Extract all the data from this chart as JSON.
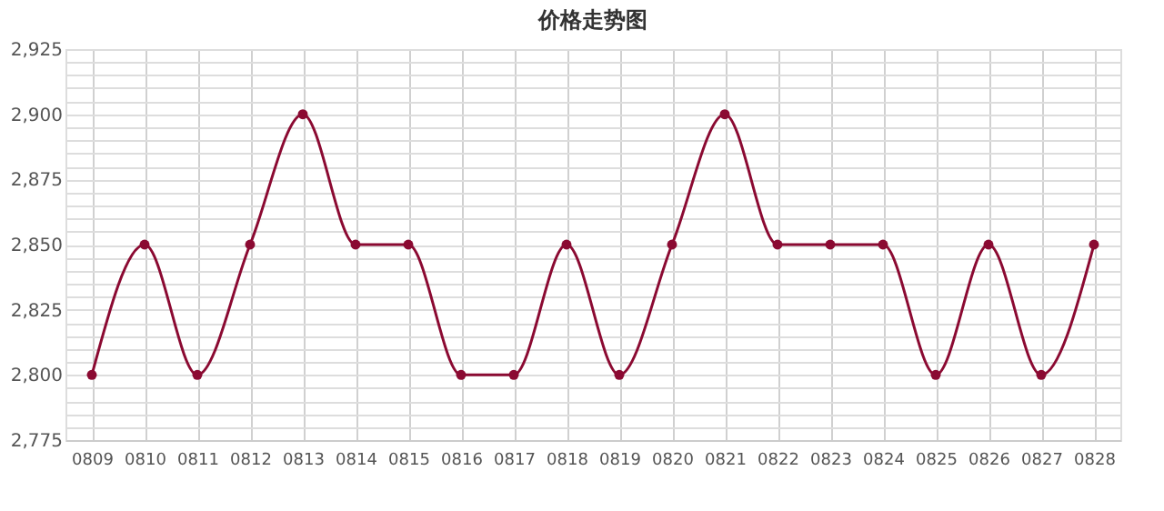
{
  "chart_data": {
    "type": "line",
    "title": "价格走势图",
    "categories": [
      "0809",
      "0810",
      "0811",
      "0812",
      "0813",
      "0814",
      "0815",
      "0816",
      "0817",
      "0818",
      "0819",
      "0820",
      "0821",
      "0822",
      "0823",
      "0824",
      "0825",
      "0826",
      "0827",
      "0828"
    ],
    "series": [
      {
        "color": "#8b0a32",
        "values": [
          2800,
          2850,
          2800,
          2850,
          2900,
          2850,
          2850,
          2800,
          2800,
          2850,
          2800,
          2850,
          2900,
          2850,
          2850,
          2850,
          2800,
          2850,
          2800,
          2850
        ]
      }
    ],
    "ylim": [
      2775,
      2925
    ],
    "yticks": [
      {
        "value": 2775,
        "label": "2,775"
      },
      {
        "value": 2780,
        "label": null
      },
      {
        "value": 2785,
        "label": null
      },
      {
        "value": 2790,
        "label": null
      },
      {
        "value": 2795,
        "label": null
      },
      {
        "value": 2800,
        "label": "2,800"
      },
      {
        "value": 2805,
        "label": null
      },
      {
        "value": 2810,
        "label": null
      },
      {
        "value": 2815,
        "label": null
      },
      {
        "value": 2820,
        "label": null
      },
      {
        "value": 2825,
        "label": "2,825"
      },
      {
        "value": 2830,
        "label": null
      },
      {
        "value": 2835,
        "label": null
      },
      {
        "value": 2840,
        "label": null
      },
      {
        "value": 2845,
        "label": null
      },
      {
        "value": 2850,
        "label": "2,850"
      },
      {
        "value": 2855,
        "label": null
      },
      {
        "value": 2860,
        "label": null
      },
      {
        "value": 2865,
        "label": null
      },
      {
        "value": 2870,
        "label": null
      },
      {
        "value": 2875,
        "label": "2,875"
      },
      {
        "value": 2880,
        "label": null
      },
      {
        "value": 2885,
        "label": null
      },
      {
        "value": 2890,
        "label": null
      },
      {
        "value": 2895,
        "label": null
      },
      {
        "value": 2900,
        "label": "2,900"
      },
      {
        "value": 2905,
        "label": null
      },
      {
        "value": 2910,
        "label": null
      },
      {
        "value": 2915,
        "label": null
      },
      {
        "value": 2920,
        "label": null
      },
      {
        "value": 2925,
        "label": "2,925"
      }
    ],
    "grid": true,
    "marker": "circle",
    "line_style": "solid"
  }
}
